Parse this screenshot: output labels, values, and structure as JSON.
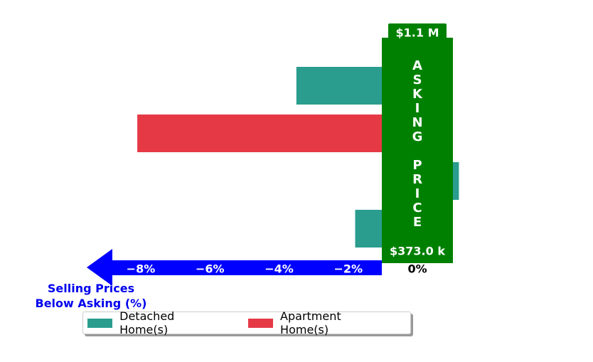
{
  "chart_data": {
    "type": "barh",
    "categories": [
      null,
      null,
      null,
      null
    ],
    "series": [
      {
        "name": "Detached Home(s)",
        "color": "#2a9d8f",
        "values": [
          -3.5,
          null,
          1.2,
          -1.8
        ]
      },
      {
        "name": "Apartment Home(s)",
        "color": "#e63946",
        "values": [
          null,
          -8.1,
          null,
          null
        ]
      }
    ],
    "xlim": [
      -9.5,
      1.5
    ],
    "xticks": [
      {
        "value": -8,
        "label": "−8%"
      },
      {
        "value": -6,
        "label": "−6%"
      },
      {
        "value": -4,
        "label": "−4%"
      },
      {
        "value": -2,
        "label": "−2%"
      },
      {
        "value": 0,
        "label": "0%"
      }
    ],
    "xlabel": "Selling Prices\nBelow Asking (%)",
    "asking_label": "ASKING PRICE",
    "top_price": "$1.1 M",
    "bottom_price": "$373.0 k",
    "box_color": "#008000",
    "axis_color": "#0000ff",
    "legend": "bottom-left"
  }
}
